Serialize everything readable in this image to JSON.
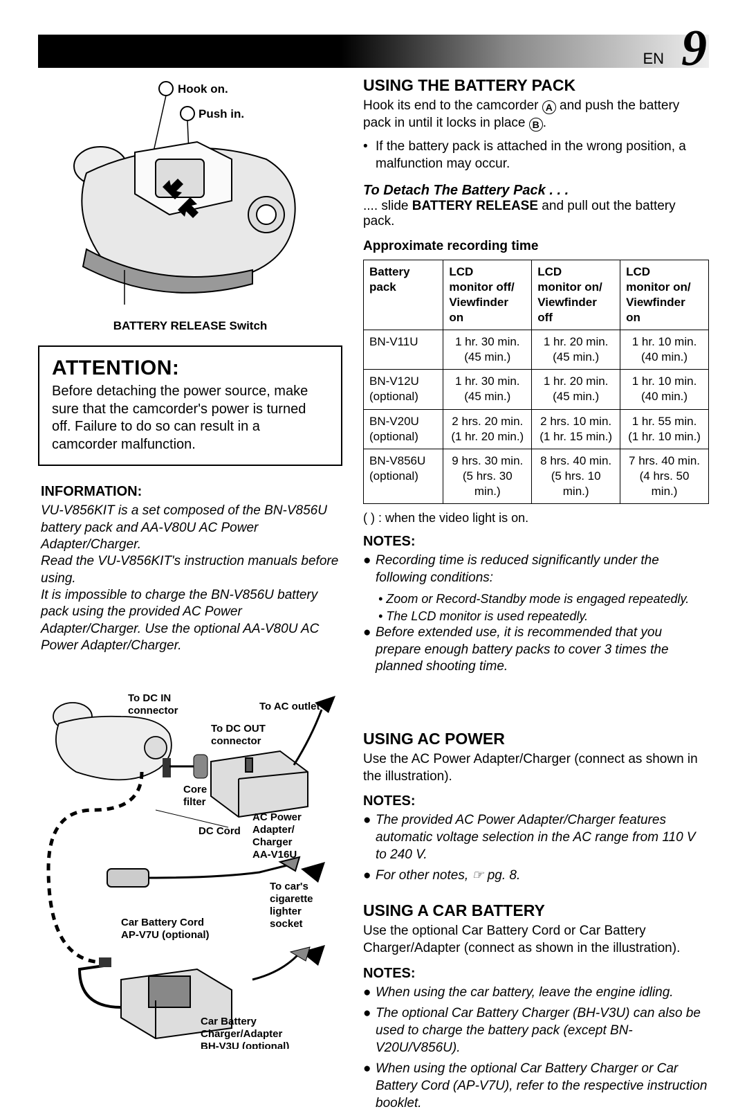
{
  "page": {
    "lang": "EN",
    "number": "9"
  },
  "fig1": {
    "label_hook": "Hook on.",
    "label_push": "Push in.",
    "caption": "BATTERY RELEASE Switch"
  },
  "attention": {
    "heading": "ATTENTION:",
    "text": "Before detaching the power source, make sure that the camcorder's power is turned off. Failure to do so can result in a camcorder malfunction."
  },
  "information": {
    "heading": "INFORMATION:",
    "p1": "VU-V856KIT is a set composed of the BN-V856U battery pack and AA-V80U AC Power Adapter/Charger.",
    "p2": "Read the VU-V856KIT's instruction manuals before using.",
    "p3": "It is impossible to charge the BN-V856U battery pack using the provided AC Power Adapter/Charger. Use the optional AA-V80U AC Power Adapter/Charger."
  },
  "fig2": {
    "dc_in": "To DC IN\nconnector",
    "ac_out": "To AC outlet",
    "dc_out": "To DC OUT\nconnector",
    "core": "Core\nfilter",
    "adapter": "AC Power\nAdapter/\nCharger\nAA-V16U",
    "dccord": "DC Cord",
    "car_socket": "To car's\ncigarette\nlighter\nsocket",
    "car_cord": "Car Battery Cord\nAP-V7U (optional)",
    "car_charger": "Car Battery\nCharger/Adapter\nBH-V3U (optional)"
  },
  "battery_section": {
    "heading": "USING THE BATTERY PACK",
    "intro_a": "Hook its end to the camcorder ",
    "intro_b": " and push the battery pack in until it locks in place ",
    "intro_c": ".",
    "bullet1": "If the battery pack is attached in the wrong position, a malfunction may occur.",
    "detach_head": "To Detach The Battery Pack . . .",
    "detach_line_a": ".... slide ",
    "detach_bold": "BATTERY RELEASE",
    "detach_line_b": " and pull out the battery pack.",
    "table_title": "Approximate recording time",
    "headers": {
      "c1": "Battery pack",
      "c2a": "LCD",
      "c2b": "monitor off/",
      "c2c": "Viewfinder on",
      "c3a": "LCD",
      "c3b": "monitor on/",
      "c3c": "Viewfinder off",
      "c4a": "LCD",
      "c4b": "monitor on/",
      "c4c": "Viewfinder on"
    },
    "rows": [
      {
        "name": "BN-V11U",
        "opt": "",
        "v1a": "1 hr. 30 min.",
        "v1b": "(45 min.)",
        "v2a": "1 hr. 20 min.",
        "v2b": "(45 min.)",
        "v3a": "1 hr. 10 min.",
        "v3b": "(40 min.)"
      },
      {
        "name": "BN-V12U",
        "opt": "(optional)",
        "v1a": "1 hr. 30 min.",
        "v1b": "(45 min.)",
        "v2a": "1 hr. 20 min.",
        "v2b": "(45 min.)",
        "v3a": "1 hr. 10 min.",
        "v3b": "(40 min.)"
      },
      {
        "name": "BN-V20U",
        "opt": "(optional)",
        "v1a": "2 hrs. 20 min.",
        "v1b": "(1 hr. 20 min.)",
        "v2a": "2 hrs. 10 min.",
        "v2b": "(1 hr. 15 min.)",
        "v3a": "1 hr. 55 min.",
        "v3b": "(1 hr. 10 min.)"
      },
      {
        "name": "BN-V856U",
        "opt": "(optional)",
        "v1a": "9 hrs. 30 min.",
        "v1b": "(5 hrs. 30 min.)",
        "v2a": "8 hrs. 40 min.",
        "v2b": "(5 hrs. 10 min.)",
        "v3a": "7 hrs. 40 min.",
        "v3b": "(4 hrs. 50 min.)"
      }
    ],
    "table_note": "(   ) : when the video light is on.",
    "notes_head": "NOTES:",
    "note1": "Recording time is reduced significantly under the following conditions:",
    "note1a": "• Zoom or Record-Standby mode is engaged repeatedly.",
    "note1b": "• The LCD monitor is used repeatedly.",
    "note2": "Before extended use, it is recommended that you prepare enough battery packs to cover 3 times the planned shooting time."
  },
  "ac_section": {
    "heading": "USING AC POWER",
    "intro": "Use the AC Power Adapter/Charger (connect as shown in the illustration).",
    "notes_head": "NOTES:",
    "note1": "The provided AC Power Adapter/Charger features automatic voltage selection in the AC range from 110 V to 240 V.",
    "note2": "For other notes, ☞ pg. 8."
  },
  "car_section": {
    "heading": "USING A CAR BATTERY",
    "intro": "Use the optional Car Battery Cord or Car Battery Charger/Adapter (connect as shown in the illustration).",
    "notes_head": "NOTES:",
    "note1": "When using the car battery, leave the engine idling.",
    "note2": "The optional Car Battery Charger (BH-V3U) can also be used to charge the battery pack (except BN-V20U/V856U).",
    "note3": "When using the optional Car Battery Charger or Car Battery Cord (AP-V7U), refer to the respective instruction booklet."
  }
}
